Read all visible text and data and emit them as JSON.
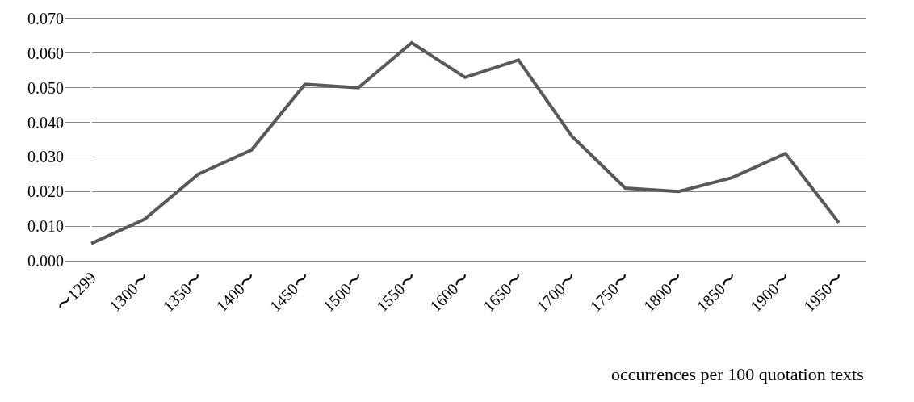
{
  "chart_data": {
    "type": "line",
    "categories": [
      "〜1299",
      "1300〜",
      "1350〜",
      "1400〜",
      "1450〜",
      "1500〜",
      "1550〜",
      "1600〜",
      "1650〜",
      "1700〜",
      "1750〜",
      "1800〜",
      "1850〜",
      "1900〜",
      "1950〜"
    ],
    "series": [
      {
        "color": "#595959",
        "values": [
          0.005,
          0.012,
          0.025,
          0.032,
          0.051,
          0.05,
          0.063,
          0.053,
          0.058,
          0.036,
          0.021,
          0.02,
          0.024,
          0.031,
          0.011
        ]
      }
    ],
    "ylim": [
      0,
      0.07
    ],
    "yticks": [
      {
        "value": 0,
        "label": "0.000"
      },
      {
        "value": 0.01,
        "label": "0.010"
      },
      {
        "value": 0.02,
        "label": "0.020"
      },
      {
        "value": 0.03,
        "label": "0.030"
      },
      {
        "value": 0.04,
        "label": "0.040"
      },
      {
        "value": 0.05,
        "label": "0.050"
      },
      {
        "value": 0.06,
        "label": "0.060"
      },
      {
        "value": 0.07,
        "label": "0.070"
      }
    ],
    "grid": "y",
    "marker": "none",
    "line_style": "solid",
    "annotations": [
      "occurrences per 100 quotation texts"
    ]
  }
}
